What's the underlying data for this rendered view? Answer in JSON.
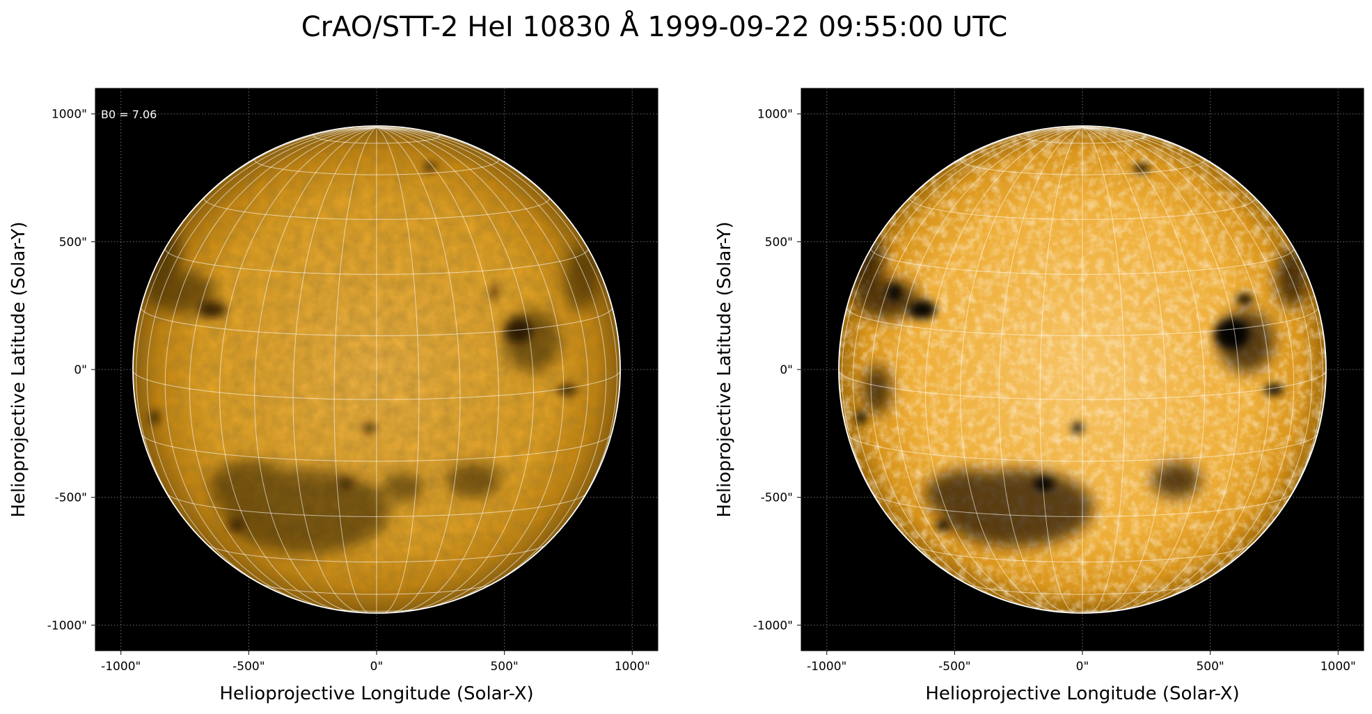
{
  "figure": {
    "title": "CrAO/STT-2 HeI 10830 Å 1999-09-22 09:55:00 UTC"
  },
  "colors": {
    "background": "#000000",
    "disk_bright": "#f7bf55",
    "disk_mid": "#de9a12",
    "disk_dark": "#2a1a02",
    "grid": "#ffffff"
  },
  "panels": [
    {
      "name": "left",
      "annotation": "B0 = 7.06",
      "xlabel": "Helioprojective Longitude (Solar-X)",
      "ylabel": "Helioprojective Latitude (Solar-Y)",
      "xticks": [
        "-1000\"",
        "-500\"",
        "0\"",
        "500\"",
        "1000\""
      ],
      "yticks": [
        "1000\"",
        "500\"",
        "0\"",
        "-500\"",
        "-1000\""
      ],
      "tick_values": [
        -1000,
        -500,
        0,
        500,
        1000
      ],
      "range_arcsec": [
        -1100,
        1100
      ],
      "solar_radius_arcsec": 955,
      "contrast": "normal"
    },
    {
      "name": "right",
      "annotation": "",
      "xlabel": "Helioprojective Longitude (Solar-X)",
      "ylabel": "Helioprojective Latitude (Solar-Y)",
      "xticks": [
        "-1000\"",
        "-500\"",
        "0\"",
        "500\"",
        "1000\""
      ],
      "yticks": [
        "1000\"",
        "500\"",
        "0\"",
        "-500\"",
        "-1000\""
      ],
      "tick_values": [
        -1000,
        -500,
        0,
        500,
        1000
      ],
      "range_arcsec": [
        -1100,
        1100
      ],
      "solar_radius_arcsec": 955,
      "contrast": "enhanced"
    }
  ],
  "grid": {
    "longitude_step_deg": 10,
    "latitude_step_deg": 15,
    "b0_deg": 7.06
  }
}
